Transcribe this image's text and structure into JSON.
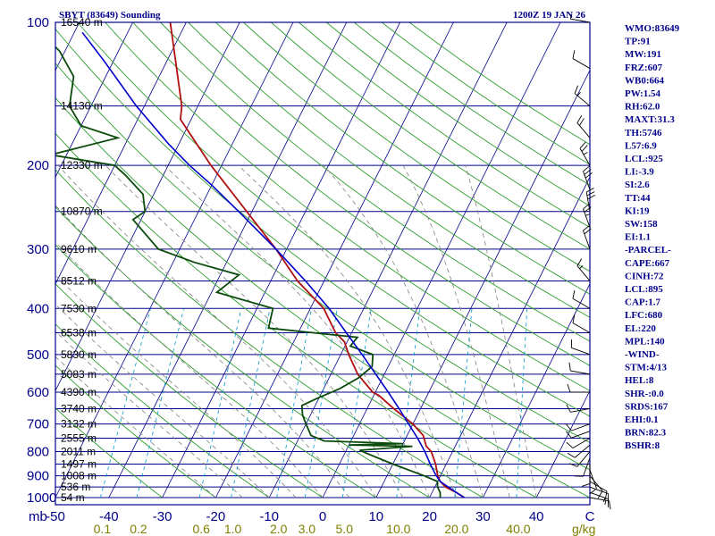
{
  "header": {
    "station": "SBYT (83649) Sounding",
    "time": "1200Z 19 JAN 26"
  },
  "colors": {
    "isobar": "#00008b",
    "frame": "#00008b",
    "isotherm": "#00008b",
    "dry_adiabat": "#2e9e2e",
    "moist_adiabat": "#808080",
    "mixing_ratio": "#0099cc",
    "temperature": "#b01010",
    "dewpoint": "#0a4a0a",
    "parcel": "#0000cd",
    "wind": "#000000",
    "label_text": "#00008b",
    "mixing_label": "#808000"
  },
  "corner_label": "mb",
  "mixing_unit": "g/kg",
  "chart_data": {
    "type": "skew-t",
    "y_axis": {
      "scale": "log",
      "unit": "mb",
      "range": [
        1000,
        100
      ]
    },
    "x_axis": {
      "unit": "C",
      "range": [
        -50,
        50
      ],
      "ticks": [
        -50,
        -40,
        -30,
        -20,
        -10,
        0,
        10,
        20,
        30,
        40,
        50
      ]
    },
    "pressure_labels": [
      {
        "p": 100,
        "label": "100"
      },
      {
        "p": 200,
        "label": "200"
      },
      {
        "p": 300,
        "label": "300"
      },
      {
        "p": 400,
        "label": "400"
      },
      {
        "p": 500,
        "label": "500"
      },
      {
        "p": 600,
        "label": "600"
      },
      {
        "p": 700,
        "label": "700"
      },
      {
        "p": 800,
        "label": "800"
      },
      {
        "p": 900,
        "label": "900"
      },
      {
        "p": 1000,
        "label": "1000"
      }
    ],
    "temp_tick_labels": [
      "-50",
      "-40",
      "-30",
      "-20",
      "-10",
      "0",
      "10",
      "20",
      "30",
      "40",
      "C"
    ],
    "mixing_labels": [
      "0.1",
      "0.2",
      "0.6",
      "1.0",
      "2.0",
      "3.0",
      "5.0",
      "10.0",
      "20.0",
      "40.0"
    ],
    "height_labels": [
      {
        "p": 100,
        "text": "16540 m"
      },
      {
        "p": 150,
        "text": "14130 m"
      },
      {
        "p": 200,
        "text": "12330 m"
      },
      {
        "p": 250,
        "text": "10870 m"
      },
      {
        "p": 300,
        "text": "9610 m"
      },
      {
        "p": 350,
        "text": "8512 m"
      },
      {
        "p": 400,
        "text": "7530 m"
      },
      {
        "p": 450,
        "text": "6538 m"
      },
      {
        "p": 500,
        "text": "5830 m"
      },
      {
        "p": 550,
        "text": "5083 m"
      },
      {
        "p": 600,
        "text": "4390 m"
      },
      {
        "p": 650,
        "text": "3740 m"
      },
      {
        "p": 700,
        "text": "3132 m"
      },
      {
        "p": 750,
        "text": "2555 m"
      },
      {
        "p": 800,
        "text": "2011 m"
      },
      {
        "p": 850,
        "text": "1497 m"
      },
      {
        "p": 900,
        "text": "1008 m"
      },
      {
        "p": 950,
        "text": "536 m"
      },
      {
        "p": 1000,
        "text": "54 m"
      }
    ],
    "series": [
      {
        "key": "temperature",
        "points": [
          [
            1000,
            26.5
          ],
          [
            975,
            24.5
          ],
          [
            950,
            22.0
          ],
          [
            925,
            20.5
          ],
          [
            900,
            19.5
          ],
          [
            850,
            18.0
          ],
          [
            800,
            16.0
          ],
          [
            780,
            14.6
          ],
          [
            740,
            13.0
          ],
          [
            700,
            10.0
          ],
          [
            650,
            5.0
          ],
          [
            610,
            1.0
          ],
          [
            600,
            -0.5
          ],
          [
            550,
            -5.0
          ],
          [
            500,
            -8.5
          ],
          [
            470,
            -10.5
          ],
          [
            450,
            -13.0
          ],
          [
            400,
            -17.5
          ],
          [
            350,
            -25.0
          ],
          [
            300,
            -32.0
          ],
          [
            250,
            -41.0
          ],
          [
            200,
            -52.0
          ],
          [
            160,
            -62.0
          ],
          [
            150,
            -63.0
          ],
          [
            100,
            -73.0
          ]
        ]
      },
      {
        "key": "dewpoint",
        "points": [
          [
            1000,
            22.0
          ],
          [
            975,
            21.5
          ],
          [
            950,
            20.5
          ],
          [
            925,
            20.0
          ],
          [
            900,
            17.0
          ],
          [
            850,
            10.0
          ],
          [
            810,
            4.5
          ],
          [
            795,
            2.5
          ],
          [
            780,
            12.0
          ],
          [
            775,
            0.0
          ],
          [
            770,
            10.0
          ],
          [
            760,
            -5.0
          ],
          [
            740,
            -8.0
          ],
          [
            700,
            -10.0
          ],
          [
            670,
            -11.5
          ],
          [
            640,
            -12.5
          ],
          [
            620,
            -10.5
          ],
          [
            590,
            -7.0
          ],
          [
            560,
            -4.5
          ],
          [
            530,
            -3.0
          ],
          [
            500,
            -4.0
          ],
          [
            480,
            -9.0
          ],
          [
            460,
            -8.5
          ],
          [
            440,
            -26.0
          ],
          [
            400,
            -27.0
          ],
          [
            370,
            -39.0
          ],
          [
            340,
            -36.5
          ],
          [
            320,
            -46.0
          ],
          [
            300,
            -54.0
          ],
          [
            260,
            -61.5
          ],
          [
            250,
            -60.0
          ],
          [
            230,
            -62.0
          ],
          [
            210,
            -67.0
          ],
          [
            200,
            -70.0
          ],
          [
            190,
            -83.0
          ],
          [
            175,
            -72.0
          ],
          [
            165,
            -80.0
          ],
          [
            150,
            -84.0
          ],
          [
            130,
            -86.0
          ],
          [
            115,
            -91.0
          ],
          [
            100,
            -99.0
          ]
        ]
      },
      {
        "key": "parcel",
        "points": [
          [
            1000,
            26.5
          ],
          [
            975,
            24.5
          ],
          [
            950,
            22.5
          ],
          [
            925,
            20.5
          ],
          [
            895,
            19.0
          ],
          [
            850,
            17.0
          ],
          [
            800,
            14.8
          ],
          [
            750,
            12.2
          ],
          [
            700,
            9.2
          ],
          [
            650,
            6.0
          ],
          [
            600,
            2.4
          ],
          [
            550,
            -1.6
          ],
          [
            500,
            -6.0
          ],
          [
            450,
            -11.0
          ],
          [
            400,
            -16.5
          ],
          [
            350,
            -23.5
          ],
          [
            300,
            -32.0
          ],
          [
            250,
            -42.5
          ],
          [
            220,
            -50.0
          ],
          [
            200,
            -56.0
          ],
          [
            180,
            -62.0
          ],
          [
            150,
            -71.5
          ],
          [
            120,
            -82.0
          ],
          [
            105,
            -88.5
          ]
        ]
      }
    ],
    "wind_barbs": [
      {
        "p": 1000,
        "dir": 100,
        "spd": 15
      },
      {
        "p": 975,
        "dir": 110,
        "spd": 15
      },
      {
        "p": 950,
        "dir": 110,
        "spd": 10
      },
      {
        "p": 925,
        "dir": 120,
        "spd": 10
      },
      {
        "p": 900,
        "dir": 140,
        "spd": 10
      },
      {
        "p": 875,
        "dir": 160,
        "spd": 10
      },
      {
        "p": 850,
        "dir": 180,
        "spd": 10
      },
      {
        "p": 825,
        "dir": 200,
        "spd": 10
      },
      {
        "p": 800,
        "dir": 220,
        "spd": 10
      },
      {
        "p": 775,
        "dir": 230,
        "spd": 10
      },
      {
        "p": 750,
        "dir": 240,
        "spd": 10
      },
      {
        "p": 725,
        "dir": 250,
        "spd": 10
      },
      {
        "p": 700,
        "dir": 250,
        "spd": 10
      },
      {
        "p": 650,
        "dir": 260,
        "spd": 10
      },
      {
        "p": 600,
        "dir": 270,
        "spd": 10
      },
      {
        "p": 550,
        "dir": 280,
        "spd": 10
      },
      {
        "p": 500,
        "dir": 290,
        "spd": 10
      },
      {
        "p": 450,
        "dir": 300,
        "spd": 10
      },
      {
        "p": 400,
        "dir": 300,
        "spd": 10
      },
      {
        "p": 350,
        "dir": 320,
        "spd": 15
      },
      {
        "p": 300,
        "dir": 340,
        "spd": 20
      },
      {
        "p": 270,
        "dir": 340,
        "spd": 25
      },
      {
        "p": 250,
        "dir": 350,
        "spd": 30
      },
      {
        "p": 225,
        "dir": 340,
        "spd": 30
      },
      {
        "p": 200,
        "dir": 330,
        "spd": 25
      },
      {
        "p": 175,
        "dir": 320,
        "spd": 20
      },
      {
        "p": 150,
        "dir": 310,
        "spd": 15
      },
      {
        "p": 125,
        "dir": 300,
        "spd": 10
      },
      {
        "p": 100,
        "dir": 280,
        "spd": 5
      }
    ]
  },
  "indices": [
    "WMO:83649",
    "TP:91",
    "MW:191",
    "FRZ:607",
    "WB0:664",
    "PW:1.54",
    "RH:62.0",
    "MAXT:31.3",
    "TH:5746",
    "L57:6.9",
    "LCL:925",
    "LI:-3.9",
    "SI:2.6",
    "TT:44",
    "KI:19",
    "SW:158",
    "EI:1.1",
    "-PARCEL-",
    "CAPE:667",
    "CINH:72",
    "LCL:895",
    "CAP:1.7",
    "LFC:680",
    "EL:220",
    "MPL:140",
    "-WIND-",
    "STM:4/13",
    "HEL:8",
    "SHR-:0.0",
    "SRDS:167",
    "EHI:0.1",
    "BRN:82.3",
    "BSHR:8"
  ]
}
